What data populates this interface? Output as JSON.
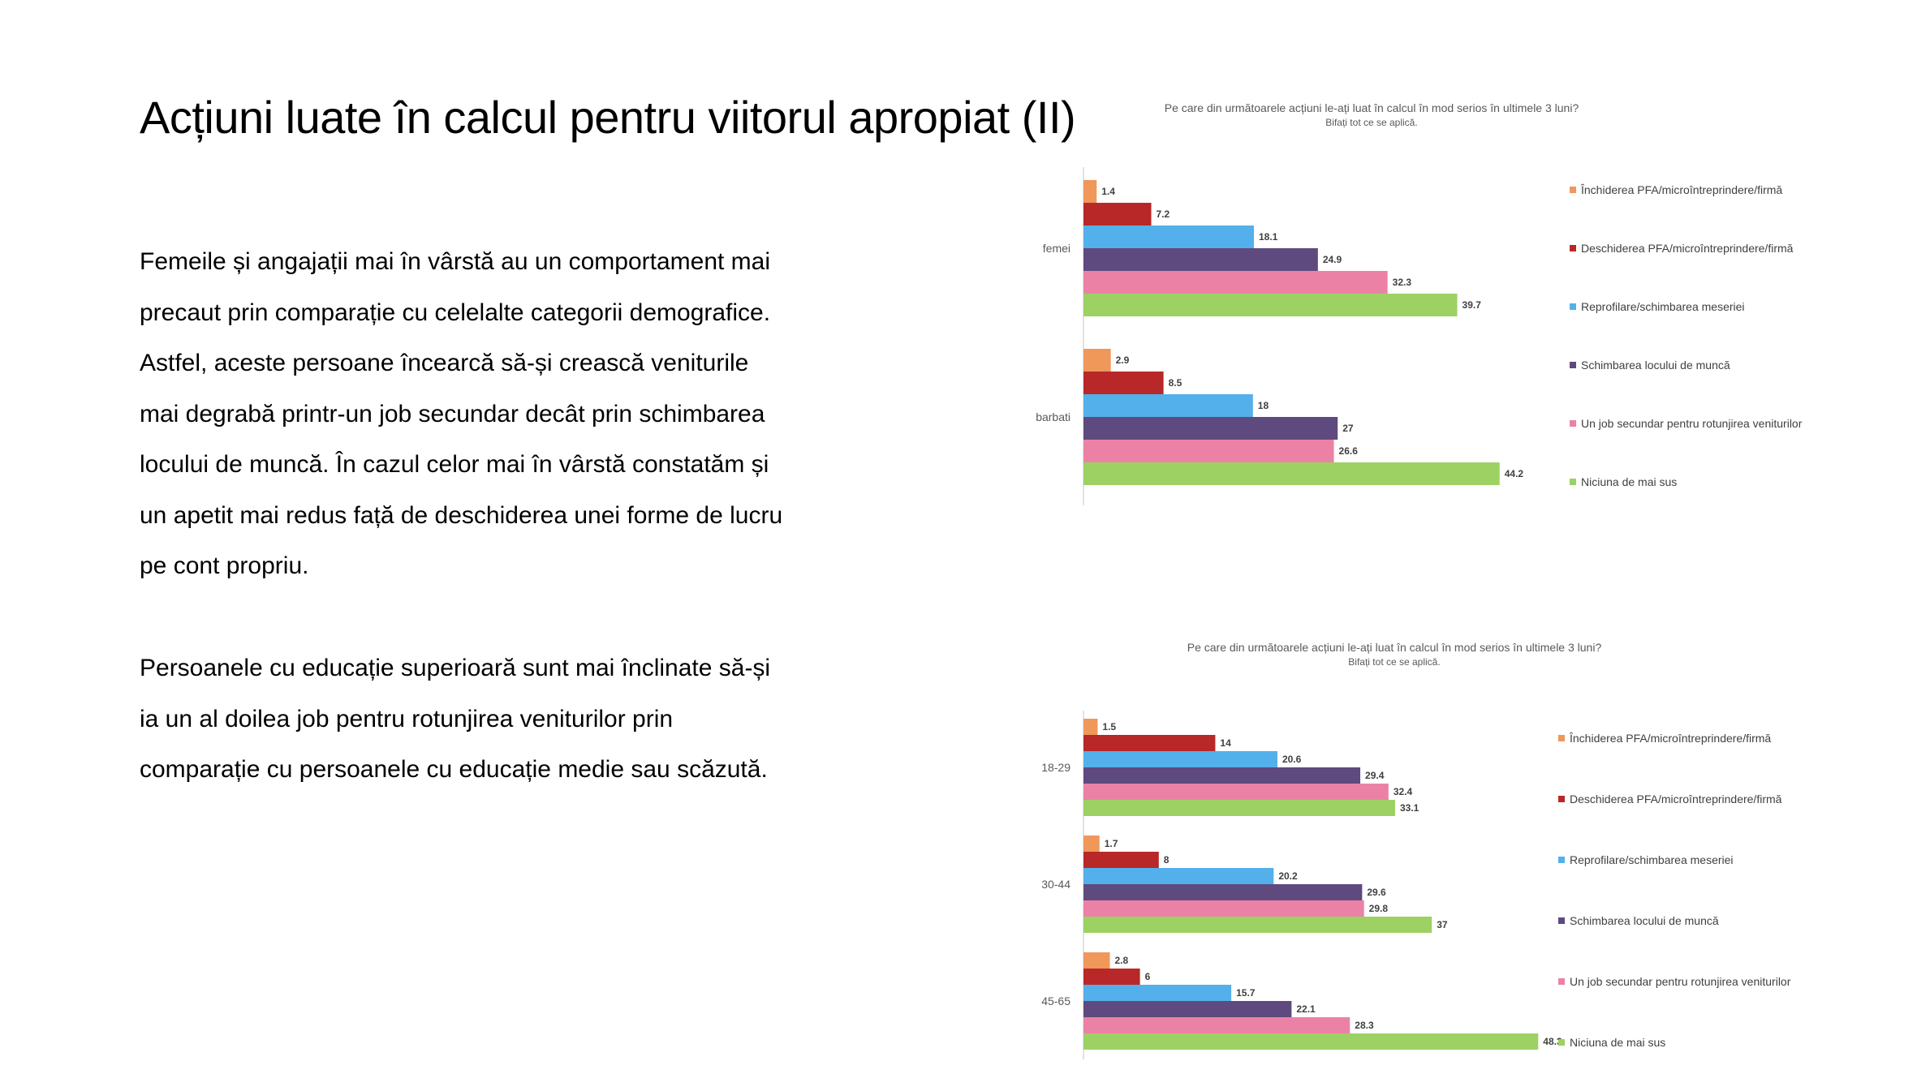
{
  "slide": {
    "title": "Acțiuni luate în calcul pentru viitorul apropiat  (II)",
    "paragraphs": [
      "Femeile și angajații mai în vârstă au un comportament mai precaut prin comparație cu celelalte categorii demografice. Astfel, aceste persoane încearcă să-și crească veniturile mai degrabă printr-un job secundar decât prin schimbarea locului de muncă. În cazul celor mai în vârstă constatăm și un apetit mai redus față de deschiderea unei forme de lucru pe cont propriu.",
      "Persoanele cu educație superioară sunt mai înclinate să-și ia un al doilea job pentru rotunjirea veniturilor prin comparație cu persoanele cu educație medie sau scăzută."
    ]
  },
  "chart_data": [
    {
      "type": "bar",
      "orientation": "horizontal",
      "title": "Pe care din următoarele acțiuni le-ați luat în calcul în mod serios în ultimele 3 luni?",
      "subtitle": "Bifați tot ce se aplică.",
      "categories": [
        "femei",
        "barbati"
      ],
      "series": [
        {
          "name": "Închiderea PFA/microîntreprindere/firmă",
          "color": "#F0975A",
          "values": [
            1.4,
            2.9
          ]
        },
        {
          "name": "Deschiderea PFA/microîntreprindere/firmă",
          "color": "#B82828",
          "values": [
            7.2,
            8.5
          ]
        },
        {
          "name": "Reprofilare/schimbarea meseriei",
          "color": "#54B0EA",
          "values": [
            18.1,
            18
          ]
        },
        {
          "name": "Schimbarea locului de muncă",
          "color": "#5E4A7E",
          "values": [
            24.9,
            27
          ]
        },
        {
          "name": "Un job secundar pentru rotunjirea veniturilor",
          "color": "#EB82A6",
          "values": [
            32.3,
            26.6
          ]
        },
        {
          "name": "Niciuna de mai sus",
          "color": "#9DD163",
          "values": [
            39.7,
            44.2
          ]
        }
      ],
      "legend_position": "right",
      "grid": false
    },
    {
      "type": "bar",
      "orientation": "horizontal",
      "title": "Pe care din următoarele acțiuni le-ați luat în calcul în mod serios în ultimele 3 luni?",
      "subtitle": "Bifați tot ce se aplică.",
      "categories": [
        "18-29",
        "30-44",
        "45-65"
      ],
      "series": [
        {
          "name": "Închiderea PFA/microîntreprindere/firmă",
          "color": "#F0975A",
          "values": [
            1.5,
            1.7,
            2.8
          ]
        },
        {
          "name": "Deschiderea PFA/microîntreprindere/firmă",
          "color": "#B82828",
          "values": [
            14,
            8,
            6
          ]
        },
        {
          "name": "Reprofilare/schimbarea meseriei",
          "color": "#54B0EA",
          "values": [
            20.6,
            20.2,
            15.7
          ]
        },
        {
          "name": "Schimbarea locului de muncă",
          "color": "#5E4A7E",
          "values": [
            29.4,
            29.6,
            22.1
          ]
        },
        {
          "name": "Un job secundar pentru rotunjirea veniturilor",
          "color": "#EB82A6",
          "values": [
            32.4,
            29.8,
            28.3
          ]
        },
        {
          "name": "Niciuna de mai sus",
          "color": "#9DD163",
          "values": [
            33.1,
            37,
            48.3
          ]
        }
      ],
      "legend_position": "right",
      "grid": false
    }
  ]
}
